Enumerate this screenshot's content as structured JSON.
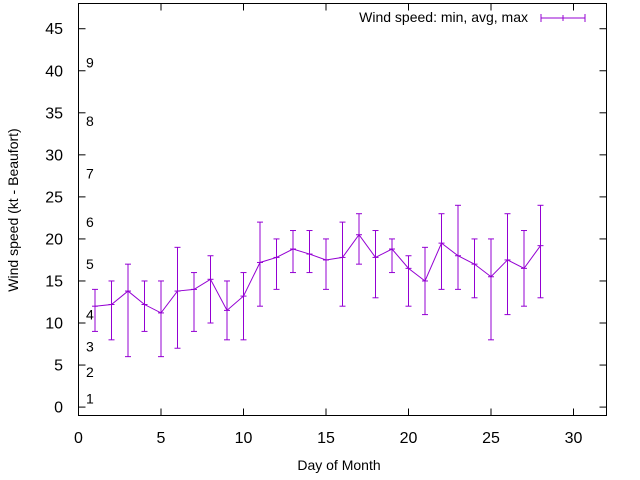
{
  "chart_data": {
    "type": "line",
    "xlabel": "Day of Month",
    "ylabel": "Wind speed (kt - Beaufort)",
    "xlim": [
      0,
      32
    ],
    "ylim": [
      -1,
      48
    ],
    "x_ticks": [
      0,
      5,
      10,
      15,
      20,
      25,
      30
    ],
    "y_ticks": [
      0,
      5,
      10,
      15,
      20,
      25,
      30,
      35,
      40,
      45
    ],
    "grid": false,
    "legend_position": "top-right",
    "color": "#9400d3",
    "series": [
      {
        "name": "Wind speed: min, avg, max",
        "points": [
          {
            "x": 1,
            "avg": 12.0,
            "min": 9,
            "max": 14
          },
          {
            "x": 2,
            "avg": 12.2,
            "min": 8,
            "max": 15
          },
          {
            "x": 3,
            "avg": 13.8,
            "min": 6,
            "max": 17
          },
          {
            "x": 4,
            "avg": 12.2,
            "min": 9,
            "max": 15
          },
          {
            "x": 5,
            "avg": 11.2,
            "min": 6,
            "max": 15
          },
          {
            "x": 6,
            "avg": 13.8,
            "min": 7,
            "max": 19
          },
          {
            "x": 7,
            "avg": 14.0,
            "min": 9,
            "max": 16
          },
          {
            "x": 8,
            "avg": 15.2,
            "min": 10,
            "max": 18
          },
          {
            "x": 9,
            "avg": 11.5,
            "min": 8,
            "max": 15
          },
          {
            "x": 10,
            "avg": 13.2,
            "min": 8,
            "max": 16
          },
          {
            "x": 11,
            "avg": 17.2,
            "min": 12,
            "max": 22
          },
          {
            "x": 12,
            "avg": 17.8,
            "min": 14,
            "max": 20
          },
          {
            "x": 13,
            "avg": 18.8,
            "min": 16,
            "max": 21
          },
          {
            "x": 14,
            "avg": 18.2,
            "min": 16,
            "max": 21
          },
          {
            "x": 15,
            "avg": 17.5,
            "min": 14,
            "max": 20
          },
          {
            "x": 16,
            "avg": 17.8,
            "min": 12,
            "max": 22
          },
          {
            "x": 17,
            "avg": 20.5,
            "min": 17,
            "max": 23
          },
          {
            "x": 18,
            "avg": 17.8,
            "min": 13,
            "max": 21
          },
          {
            "x": 19,
            "avg": 18.8,
            "min": 16,
            "max": 20
          },
          {
            "x": 20,
            "avg": 16.5,
            "min": 12,
            "max": 18
          },
          {
            "x": 21,
            "avg": 15.0,
            "min": 11,
            "max": 19
          },
          {
            "x": 22,
            "avg": 19.5,
            "min": 14,
            "max": 23
          },
          {
            "x": 23,
            "avg": 18.0,
            "min": 14,
            "max": 24
          },
          {
            "x": 24,
            "avg": 17.0,
            "min": 13,
            "max": 20
          },
          {
            "x": 25,
            "avg": 15.5,
            "min": 8,
            "max": 20
          },
          {
            "x": 26,
            "avg": 17.5,
            "min": 11,
            "max": 23
          },
          {
            "x": 27,
            "avg": 16.5,
            "min": 12,
            "max": 21
          },
          {
            "x": 28,
            "avg": 19.2,
            "min": 13,
            "max": 24
          }
        ]
      }
    ],
    "annotations": [
      {
        "text": "1",
        "y": 1.0
      },
      {
        "text": "2",
        "y": 4.2
      },
      {
        "text": "3",
        "y": 7.2
      },
      {
        "text": "4",
        "y": 11.0
      },
      {
        "text": "5",
        "y": 17.0
      },
      {
        "text": "6",
        "y": 22.0
      },
      {
        "text": "7",
        "y": 27.8
      },
      {
        "text": "8",
        "y": 34.0
      },
      {
        "text": "9",
        "y": 41.0
      }
    ]
  }
}
